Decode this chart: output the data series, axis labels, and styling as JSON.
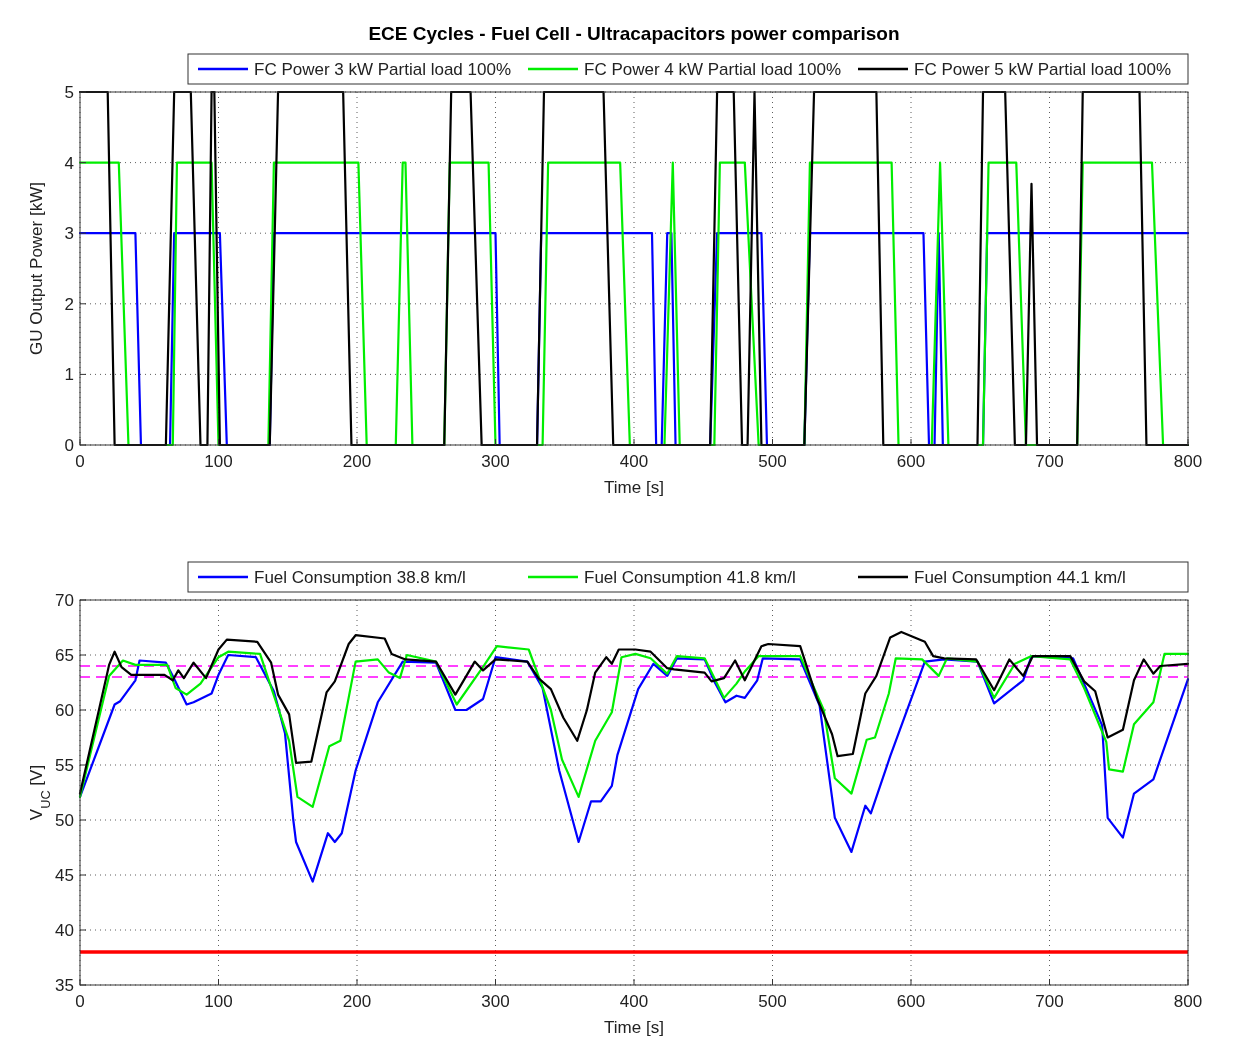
{
  "chart_data": [
    {
      "type": "line",
      "title": "ECE Cycles - Fuel Cell - Ultracapacitors power comparison",
      "xlabel": "Time [s]",
      "ylabel": "GU Output Power [kW]",
      "xlim": [
        0,
        800
      ],
      "ylim": [
        0,
        5
      ],
      "xticks": [
        0,
        100,
        200,
        300,
        400,
        500,
        600,
        700,
        800
      ],
      "yticks": [
        0,
        1,
        2,
        3,
        4,
        5
      ],
      "grid": true,
      "legend": "top",
      "line_style": "solid",
      "marker": "none",
      "series": [
        {
          "name": "FC Power 3 kW Partial load 100%",
          "color": "#0000ff",
          "x": [
            0,
            40,
            44,
            65,
            68,
            101,
            106,
            137,
            140,
            300,
            303,
            330,
            333,
            413,
            416,
            420,
            424,
            427,
            430,
            455,
            460,
            492,
            496,
            523,
            527,
            609,
            613,
            617,
            620,
            623,
            652,
            655,
            800
          ],
          "values": [
            3,
            3,
            0,
            0,
            3,
            3,
            0,
            0,
            3,
            3,
            0,
            0,
            3,
            3,
            0,
            0,
            3,
            3,
            0,
            0,
            3,
            3,
            0,
            0,
            3,
            3,
            0,
            0,
            3,
            0,
            0,
            3,
            3
          ]
        },
        {
          "name": "FC Power 4 kW Partial load 100%",
          "color": "#00ee00",
          "x": [
            0,
            28,
            35,
            67,
            70,
            95,
            100,
            136,
            140,
            201,
            207,
            228,
            233,
            235,
            240,
            263,
            267,
            295,
            300,
            334,
            338,
            390,
            397,
            422,
            428,
            433,
            458,
            462,
            480,
            490,
            523,
            527,
            586,
            591,
            615,
            621,
            627,
            652,
            656,
            676,
            683,
            720,
            724,
            774,
            782,
            800
          ],
          "values": [
            4,
            4,
            0,
            0,
            4,
            4,
            0,
            0,
            4,
            4,
            0,
            0,
            4,
            4,
            0,
            0,
            4,
            4,
            0,
            0,
            4,
            4,
            0,
            0,
            4,
            0,
            0,
            4,
            4,
            0,
            0,
            4,
            4,
            0,
            0,
            4,
            0,
            0,
            4,
            4,
            0,
            0,
            4,
            4,
            0,
            0
          ]
        },
        {
          "name": "FC Power 5 kW Partial load 100%",
          "color": "#000000",
          "x": [
            0,
            20,
            25,
            62,
            68,
            80,
            87,
            92,
            95,
            97,
            101,
            137,
            143,
            190,
            196,
            263,
            268,
            282,
            290,
            330,
            335,
            378,
            385,
            455,
            460,
            472,
            478,
            482,
            487,
            492,
            523,
            530,
            575,
            580,
            648,
            652,
            668,
            675,
            683,
            687,
            691,
            720,
            724,
            765,
            770,
            800
          ],
          "values": [
            5,
            5,
            0,
            0,
            5,
            5,
            0,
            0,
            5,
            5,
            0,
            0,
            5,
            5,
            0,
            0,
            5,
            5,
            0,
            0,
            5,
            5,
            0,
            0,
            5,
            5,
            0,
            0,
            5,
            0,
            0,
            5,
            5,
            0,
            0,
            5,
            5,
            0,
            0,
            3.7,
            0,
            0,
            5,
            5,
            0,
            0
          ]
        }
      ]
    },
    {
      "type": "line",
      "xlabel": "Time [s]",
      "ylabel": "V$_{UC}$ [V]",
      "xlim": [
        0,
        800
      ],
      "ylim": [
        35,
        70
      ],
      "xticks": [
        0,
        100,
        200,
        300,
        400,
        500,
        600,
        700,
        800
      ],
      "yticks": [
        35,
        40,
        45,
        50,
        55,
        60,
        65,
        70
      ],
      "grid": true,
      "legend": "top",
      "line_style": "solid",
      "marker": "none",
      "ref_lines": [
        {
          "axis": "y",
          "value": 38,
          "color": "#ff0000",
          "line_style": "solid"
        },
        {
          "axis": "y",
          "value": 64,
          "color": "#ff00ff",
          "line_style": "dashed"
        },
        {
          "axis": "y",
          "value": 63,
          "color": "#ff00ff",
          "line_style": "dashed"
        }
      ],
      "series": [
        {
          "name": "Fuel Consumption 38.8 km/l",
          "color": "#0000ff",
          "x": [
            0,
            25,
            29,
            40,
            43,
            62,
            67,
            77,
            82,
            95,
            100,
            107,
            127,
            140,
            148,
            154,
            156,
            168,
            179,
            184,
            189,
            199,
            215,
            233,
            257,
            271,
            279,
            291,
            300,
            323,
            334,
            346,
            360,
            369,
            376,
            384,
            388,
            403,
            414,
            424,
            431,
            451,
            458,
            466,
            474,
            480,
            489,
            493,
            520,
            534,
            545,
            557,
            567,
            571,
            585,
            610,
            624,
            648,
            660,
            681,
            687,
            717,
            727,
            738,
            742,
            753,
            761,
            775,
            800
          ],
          "values": [
            52.1,
            60.5,
            60.8,
            62.7,
            64.5,
            64.3,
            63.1,
            60.5,
            60.7,
            61.5,
            63.2,
            65,
            64.8,
            61.7,
            57.9,
            50,
            48,
            44.4,
            48.8,
            48,
            48.8,
            54.5,
            60.7,
            64.4,
            64.3,
            60,
            60,
            61,
            64.8,
            64.4,
            62,
            54.5,
            48,
            51.7,
            51.7,
            53.1,
            55.9,
            61.9,
            64.2,
            63.1,
            64.7,
            64.6,
            62.6,
            60.7,
            61.3,
            61.1,
            62.7,
            64.7,
            64.6,
            60.4,
            50.2,
            47.1,
            51.3,
            50.6,
            55.8,
            64.4,
            64.6,
            64.4,
            60.6,
            62.7,
            64.9,
            64.7,
            61.8,
            58.6,
            50.2,
            48.4,
            52.4,
            53.7,
            62.8
          ]
        },
        {
          "name": "Fuel Consumption 41.8 km/l",
          "color": "#00ee00",
          "x": [
            0,
            21,
            31,
            40,
            63,
            69,
            77,
            87,
            100,
            107,
            130,
            139,
            151,
            157,
            168,
            180,
            188,
            199,
            215,
            223,
            231,
            236,
            257,
            272,
            292,
            301,
            324,
            340,
            348,
            360,
            372,
            384,
            391,
            401,
            412,
            424,
            431,
            451,
            458,
            465,
            474,
            480,
            490,
            520,
            537,
            545,
            557,
            568,
            574,
            584,
            589,
            608,
            620,
            626,
            648,
            660,
            675,
            687,
            715,
            725,
            741,
            743,
            753,
            761,
            775,
            783,
            800
          ],
          "values": [
            52.1,
            63.1,
            64.5,
            64.1,
            64.1,
            62,
            61.4,
            62.4,
            64.8,
            65.3,
            65.1,
            61.7,
            57.2,
            52.1,
            51.2,
            56.7,
            57.2,
            64.4,
            64.6,
            63.4,
            62.9,
            65,
            64.4,
            60.5,
            64.1,
            65.8,
            65.5,
            60,
            55.5,
            52.1,
            57.2,
            59.8,
            64.8,
            65.1,
            64.7,
            63.3,
            64.9,
            64.7,
            62.9,
            61.1,
            62.4,
            63.5,
            64.9,
            64.9,
            60,
            53.8,
            52.4,
            57.3,
            57.5,
            61.5,
            64.7,
            64.6,
            63.1,
            64.7,
            64.4,
            61.1,
            64.2,
            64.9,
            64.6,
            62,
            57.1,
            54.6,
            54.4,
            58.7,
            60.7,
            65.1,
            65.1
          ]
        },
        {
          "name": "Fuel Consumption 44.1 km/l",
          "color": "#000000",
          "x": [
            0,
            21,
            25,
            30,
            37,
            61,
            67,
            71,
            75,
            82,
            91,
            100,
            106,
            128,
            138,
            143,
            151,
            156,
            167,
            178,
            184,
            194,
            199,
            220,
            225,
            235,
            257,
            271,
            285,
            291,
            300,
            323,
            331,
            340,
            349,
            359,
            366,
            372,
            380,
            384,
            389,
            401,
            412,
            424,
            429,
            451,
            456,
            465,
            473,
            480,
            492,
            497,
            520,
            532,
            543,
            547,
            558,
            567,
            575,
            585,
            593,
            610,
            616,
            624,
            647,
            660,
            671,
            681,
            688,
            715,
            725,
            733,
            742,
            753,
            761,
            768,
            775,
            780,
            800
          ],
          "values": [
            52.4,
            64.1,
            65.3,
            63.9,
            63.2,
            63.2,
            62.7,
            63.6,
            62.9,
            64.3,
            62.9,
            65.5,
            66.4,
            66.2,
            64.3,
            61.4,
            59.6,
            55.2,
            55.3,
            61.6,
            62.6,
            66,
            66.8,
            66.5,
            65.1,
            64.6,
            64.4,
            61.4,
            64.4,
            63.6,
            64.6,
            64.4,
            62.9,
            61.9,
            59.3,
            57.2,
            60,
            63.4,
            64.8,
            64.2,
            65.5,
            65.5,
            65.3,
            63.8,
            63.7,
            63.4,
            62.6,
            62.9,
            64.5,
            62.7,
            65.8,
            66,
            65.8,
            61.1,
            57.8,
            55.8,
            56,
            61.5,
            63.1,
            66.6,
            67.1,
            66.2,
            64.9,
            64.7,
            64.6,
            61.8,
            64.6,
            63.1,
            64.9,
            64.9,
            62.6,
            61.7,
            57.5,
            58.2,
            62.7,
            64.6,
            63.3,
            64,
            64.2
          ]
        }
      ]
    }
  ]
}
